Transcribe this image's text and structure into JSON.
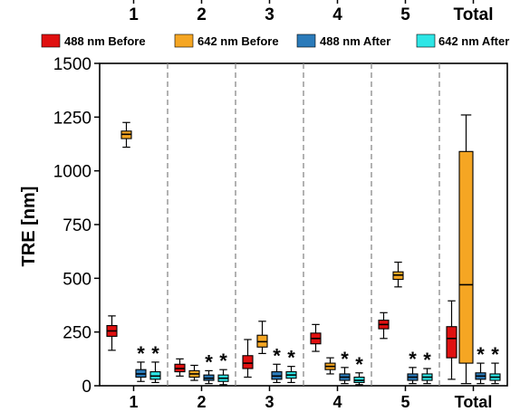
{
  "chart_data": {
    "type": "box",
    "ylabel": "TRE [nm]",
    "ylim": [
      0,
      1500
    ],
    "yticks": [
      0,
      250,
      500,
      750,
      1000,
      1250,
      1500
    ],
    "categories": [
      "1",
      "2",
      "3",
      "4",
      "5",
      "Total"
    ],
    "legend": {
      "placement": "top"
    },
    "series": [
      {
        "name": "488 nm Before",
        "color": "#e01010"
      },
      {
        "name": "642 nm Before",
        "color": "#f5a623"
      },
      {
        "name": "488 nm After",
        "color": "#2b7bba"
      },
      {
        "name": "642 nm After",
        "color": "#2ee6e6"
      }
    ],
    "significance_marker": "*",
    "groups": [
      {
        "category": "1",
        "boxes": [
          {
            "series": 0,
            "min": 165,
            "q1": 230,
            "median": 255,
            "q3": 280,
            "max": 325,
            "star": false
          },
          {
            "series": 1,
            "min": 1110,
            "q1": 1150,
            "median": 1170,
            "q3": 1185,
            "max": 1225,
            "star": false
          },
          {
            "series": 2,
            "min": 20,
            "q1": 40,
            "median": 55,
            "q3": 75,
            "max": 110,
            "star": true
          },
          {
            "series": 3,
            "min": 15,
            "q1": 30,
            "median": 45,
            "q3": 65,
            "max": 110,
            "star": true
          }
        ]
      },
      {
        "category": "2",
        "boxes": [
          {
            "series": 0,
            "min": 45,
            "q1": 65,
            "median": 80,
            "q3": 100,
            "max": 125,
            "star": false
          },
          {
            "series": 1,
            "min": 25,
            "q1": 40,
            "median": 55,
            "q3": 70,
            "max": 95,
            "star": false
          },
          {
            "series": 2,
            "min": 10,
            "q1": 25,
            "median": 35,
            "q3": 50,
            "max": 70,
            "star": true
          },
          {
            "series": 3,
            "min": 5,
            "q1": 20,
            "median": 35,
            "q3": 50,
            "max": 75,
            "star": true
          }
        ]
      },
      {
        "category": "3",
        "boxes": [
          {
            "series": 0,
            "min": 40,
            "q1": 80,
            "median": 105,
            "q3": 140,
            "max": 215,
            "star": false
          },
          {
            "series": 1,
            "min": 150,
            "q1": 180,
            "median": 205,
            "q3": 235,
            "max": 300,
            "star": false
          },
          {
            "series": 2,
            "min": 15,
            "q1": 30,
            "median": 45,
            "q3": 65,
            "max": 100,
            "star": true
          },
          {
            "series": 3,
            "min": 15,
            "q1": 35,
            "median": 50,
            "q3": 65,
            "max": 90,
            "star": true
          }
        ]
      },
      {
        "category": "4",
        "boxes": [
          {
            "series": 0,
            "min": 160,
            "q1": 195,
            "median": 220,
            "q3": 245,
            "max": 285,
            "star": false
          },
          {
            "series": 1,
            "min": 55,
            "q1": 75,
            "median": 90,
            "q3": 105,
            "max": 130,
            "star": false
          },
          {
            "series": 2,
            "min": 10,
            "q1": 25,
            "median": 40,
            "q3": 55,
            "max": 85,
            "star": true
          },
          {
            "series": 3,
            "min": 5,
            "q1": 15,
            "median": 25,
            "q3": 40,
            "max": 60,
            "star": true
          }
        ]
      },
      {
        "category": "5",
        "boxes": [
          {
            "series": 0,
            "min": 220,
            "q1": 265,
            "median": 285,
            "q3": 305,
            "max": 340,
            "star": false
          },
          {
            "series": 1,
            "min": 460,
            "q1": 495,
            "median": 515,
            "q3": 530,
            "max": 575,
            "star": false
          },
          {
            "series": 2,
            "min": 10,
            "q1": 25,
            "median": 40,
            "q3": 55,
            "max": 85,
            "star": true
          },
          {
            "series": 3,
            "min": 10,
            "q1": 25,
            "median": 40,
            "q3": 55,
            "max": 80,
            "star": true
          }
        ]
      },
      {
        "category": "Total",
        "boxes": [
          {
            "series": 0,
            "min": 30,
            "q1": 130,
            "median": 220,
            "q3": 275,
            "max": 395,
            "star": false
          },
          {
            "series": 1,
            "min": 10,
            "q1": 105,
            "median": 470,
            "q3": 1090,
            "max": 1260,
            "star": false
          },
          {
            "series": 2,
            "min": 10,
            "q1": 30,
            "median": 45,
            "q3": 60,
            "max": 105,
            "star": true
          },
          {
            "series": 3,
            "min": 10,
            "q1": 25,
            "median": 40,
            "q3": 55,
            "max": 105,
            "star": true
          }
        ]
      }
    ]
  }
}
